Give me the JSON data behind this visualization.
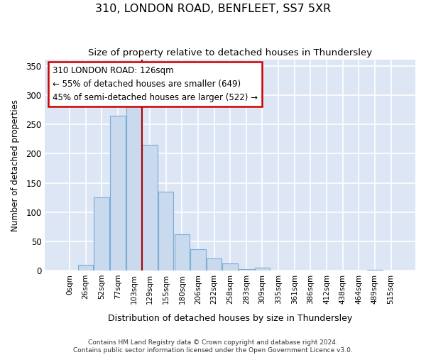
{
  "title": "310, LONDON ROAD, BENFLEET, SS7 5XR",
  "subtitle": "Size of property relative to detached houses in Thundersley",
  "xlabel": "Distribution of detached houses by size in Thundersley",
  "ylabel": "Number of detached properties",
  "bar_color": "#c9d9ee",
  "bar_edge_color": "#7aadd4",
  "fig_bg_color": "#ffffff",
  "axes_bg_color": "#dce6f5",
  "grid_color": "#ffffff",
  "categories": [
    "0sqm",
    "26sqm",
    "52sqm",
    "77sqm",
    "103sqm",
    "129sqm",
    "155sqm",
    "180sqm",
    "206sqm",
    "232sqm",
    "258sqm",
    "283sqm",
    "309sqm",
    "335sqm",
    "361sqm",
    "386sqm",
    "412sqm",
    "438sqm",
    "464sqm",
    "489sqm",
    "515sqm"
  ],
  "values": [
    0,
    10,
    125,
    265,
    285,
    215,
    135,
    62,
    36,
    21,
    12,
    3,
    5,
    0,
    0,
    0,
    0,
    0,
    0,
    1,
    0
  ],
  "ylim": [
    0,
    360
  ],
  "yticks": [
    0,
    50,
    100,
    150,
    200,
    250,
    300,
    350
  ],
  "vline_pos": 5,
  "vline_color": "#aa0000",
  "annotation_title": "310 LONDON ROAD: 126sqm",
  "annotation_line1": "← 55% of detached houses are smaller (649)",
  "annotation_line2": "45% of semi-detached houses are larger (522) →",
  "annotation_box_facecolor": "#ffffff",
  "annotation_box_edgecolor": "#cc0000",
  "footnote1": "Contains HM Land Registry data © Crown copyright and database right 2024.",
  "footnote2": "Contains public sector information licensed under the Open Government Licence v3.0."
}
